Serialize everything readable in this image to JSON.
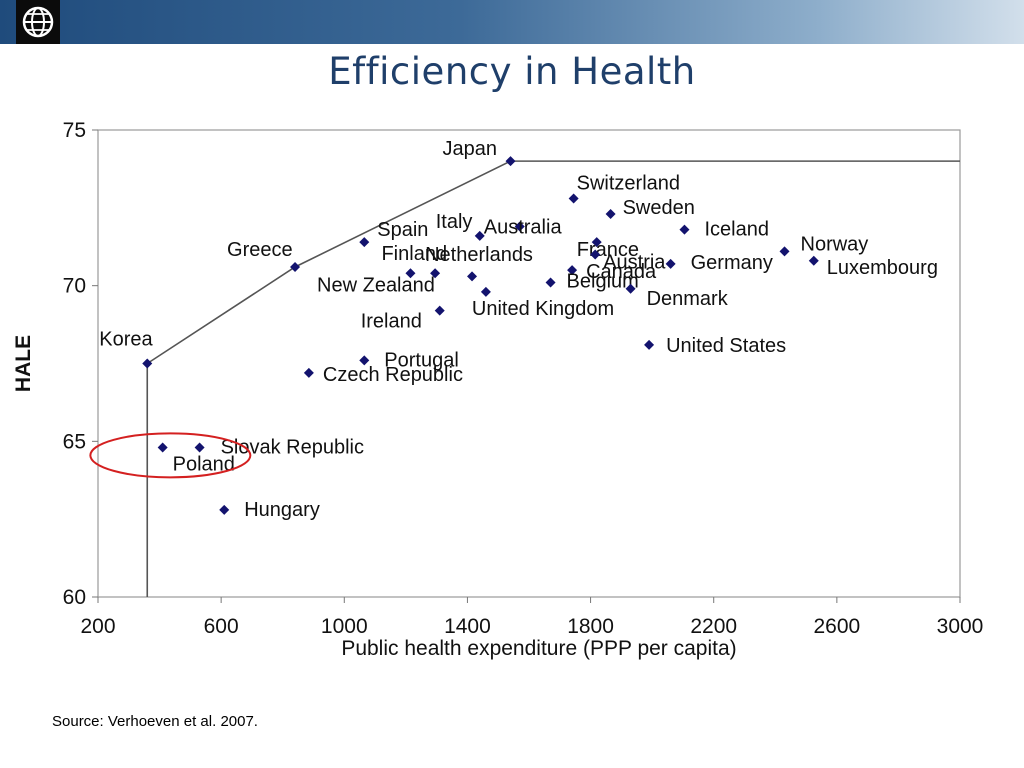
{
  "slide": {
    "title": "Efficiency in Health",
    "source": "Source: Verhoeven et al. 2007."
  },
  "logo": {
    "icon": "globe-icon"
  },
  "colors": {
    "marker": "#13136e",
    "frontier": "#555555",
    "highlight": "#d42020",
    "title": "#1f3f6a"
  },
  "chart_data": {
    "type": "scatter",
    "title": "",
    "xlabel": "Public health expenditure (PPP per capita)",
    "ylabel": "HALE",
    "xlim": [
      200,
      3000
    ],
    "ylim": [
      60,
      75
    ],
    "xticks": [
      "200",
      "600",
      "1000",
      "1400",
      "1800",
      "2200",
      "2600",
      "3000"
    ],
    "yticks": [
      "60",
      "65",
      "70",
      "75"
    ],
    "grid": false,
    "legend": "none",
    "points": [
      {
        "label": "Japan",
        "x": 1540,
        "y": 74.0
      },
      {
        "label": "Switzerland",
        "x": 1745,
        "y": 72.8
      },
      {
        "label": "Sweden",
        "x": 1865,
        "y": 72.3
      },
      {
        "label": "Australia",
        "x": 1570,
        "y": 71.9
      },
      {
        "label": "Italy",
        "x": 1440,
        "y": 71.6
      },
      {
        "label": "France",
        "x": 1820,
        "y": 71.4
      },
      {
        "label": "Iceland",
        "x": 2105,
        "y": 71.8
      },
      {
        "label": "Austria",
        "x": 1815,
        "y": 71.0
      },
      {
        "label": "Norway",
        "x": 2430,
        "y": 71.1
      },
      {
        "label": "Luxembourg",
        "x": 2525,
        "y": 70.8
      },
      {
        "label": "Spain",
        "x": 1065,
        "y": 71.4
      },
      {
        "label": "Greece",
        "x": 840,
        "y": 70.6
      },
      {
        "label": "Finland",
        "x": 1215,
        "y": 70.4
      },
      {
        "label": "Netherlands",
        "x": 1295,
        "y": 70.4
      },
      {
        "label": "New Zealand",
        "x": 1415,
        "y": 70.3
      },
      {
        "label": "Canada",
        "x": 1740,
        "y": 70.5
      },
      {
        "label": "Germany",
        "x": 2060,
        "y": 70.7
      },
      {
        "label": "Belgium",
        "x": 1670,
        "y": 70.1
      },
      {
        "label": "Denmark",
        "x": 1930,
        "y": 69.9
      },
      {
        "label": "United Kingdom",
        "x": 1460,
        "y": 69.8
      },
      {
        "label": "Ireland",
        "x": 1310,
        "y": 69.2
      },
      {
        "label": "United States",
        "x": 1990,
        "y": 68.1
      },
      {
        "label": "Korea",
        "x": 360,
        "y": 67.5
      },
      {
        "label": "Portugal",
        "x": 1065,
        "y": 67.6
      },
      {
        "label": "Czech Republic",
        "x": 885,
        "y": 67.2
      },
      {
        "label": "Poland",
        "x": 410,
        "y": 64.8
      },
      {
        "label": "Slovak Republic",
        "x": 530,
        "y": 64.8
      },
      {
        "label": "Hungary",
        "x": 610,
        "y": 62.8
      }
    ],
    "frontier": [
      {
        "x": 360,
        "y": 60.0
      },
      {
        "x": 360,
        "y": 67.5
      },
      {
        "x": 840,
        "y": 70.6
      },
      {
        "x": 1540,
        "y": 74.0
      },
      {
        "x": 3000,
        "y": 74.0
      }
    ],
    "highlight": {
      "label": "Poland / Slovak Republic",
      "points": [
        "Poland",
        "Slovak Republic"
      ]
    }
  }
}
